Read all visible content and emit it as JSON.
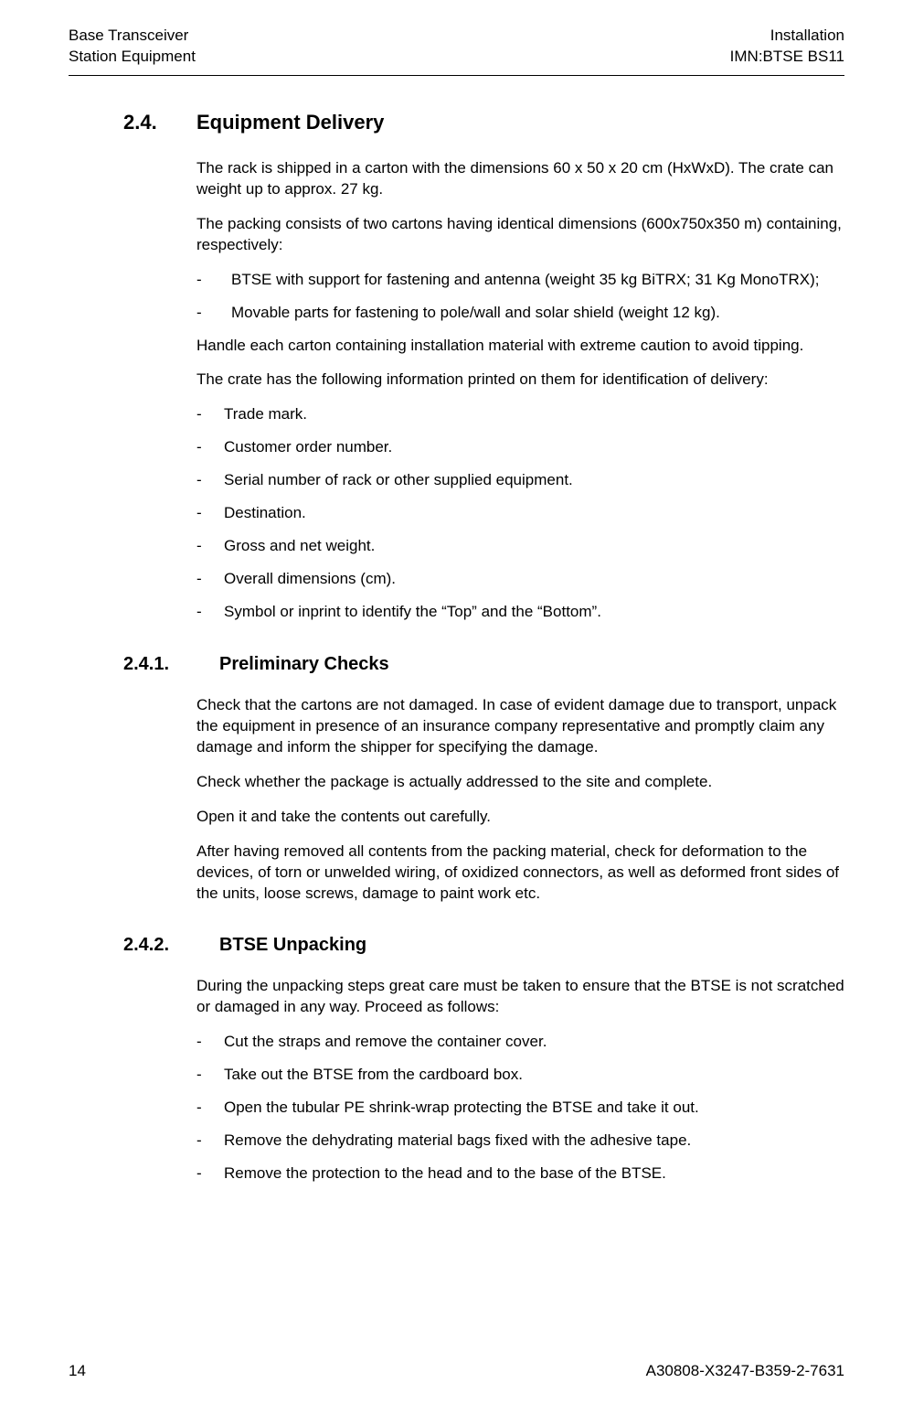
{
  "header": {
    "left_line1": "Base Transceiver",
    "left_line2": "Station Equipment",
    "right_line1": "Installation",
    "right_line2": "IMN:BTSE  BS11"
  },
  "s24": {
    "num": "2.4.",
    "title": "Equipment Delivery",
    "p1": "The rack is shipped in a carton with the dimensions 60 x 50 x 20 cm (HxWxD). The  crate can weight up to approx. 27 kg.",
    "p2": "The packing consists of two cartons having identical dimensions (600x750x350 m) containing, respectively:",
    "l1": "BTSE with support for fastening and antenna (weight 35 kg BiTRX; 31 Kg MonoTRX);",
    "l2": "Movable parts for fastening to pole/wall and solar shield (weight 12 kg).",
    "p3": "Handle each carton containing installation material with extreme caution to avoid tipping.",
    "p4": "The crate has the following information printed on them for identification of delivery:",
    "b1": "Trade mark.",
    "b2": "Customer order number.",
    "b3": "Serial number of rack or other supplied equipment.",
    "b4": "Destination.",
    "b5": "Gross and net weight.",
    "b6": "Overall dimensions (cm).",
    "b7": "Symbol or inprint to identify the “Top” and the “Bottom”."
  },
  "s241": {
    "num": "2.4.1.",
    "title": "Preliminary Checks",
    "p1": "Check that the cartons are not damaged. In case of evident damage due to transport, unpack the equipment in presence of an insurance company representative and promptly claim any damage and inform the shipper for specifying the damage.",
    "p2": "Check whether the package is actually addressed to the site and complete.",
    "p3": "Open it and take the contents out carefully.",
    "p4": "After having removed all contents from the packing material, check for deformation to the devices, of torn or unwelded wiring, of oxidized connectors, as well as deformed front sides of the units, loose screws, damage to paint work etc."
  },
  "s242": {
    "num": "2.4.2.",
    "title": "BTSE Unpacking",
    "p1": "During the unpacking steps great care must be taken to ensure that the BTSE is not scratched or damaged in any way. Proceed as follows:",
    "b1": "Cut the straps and remove the container cover.",
    "b2": "Take out the BTSE from the cardboard box.",
    "b3": "Open the tubular PE shrink-wrap protecting the BTSE and take it out.",
    "b4": "Remove the dehydrating material bags fixed with the adhesive tape.",
    "b5": "Remove the protection to the head and to the base of the BTSE."
  },
  "footer": {
    "page": "14",
    "docnum": "A30808-X3247-B359-2-7631"
  }
}
